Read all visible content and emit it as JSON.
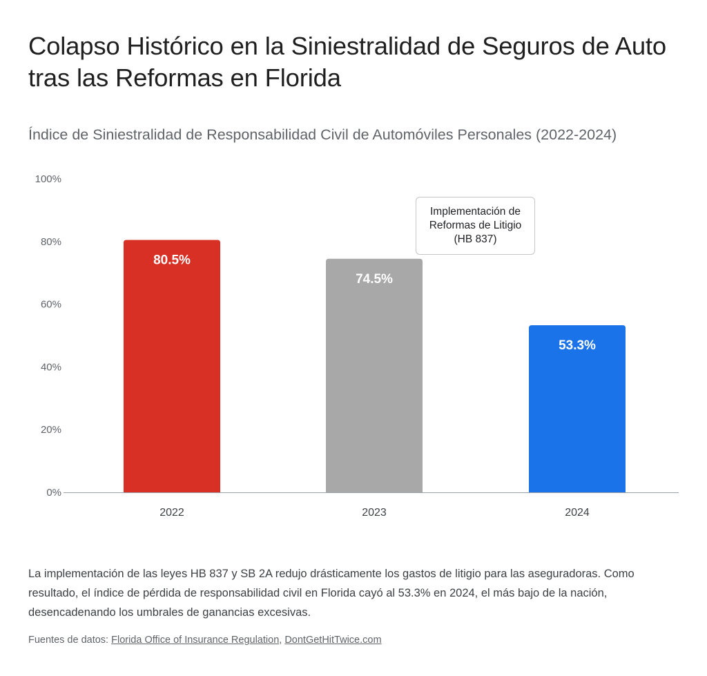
{
  "title": "Colapso Histórico en la Siniestralidad de Seguros de Auto tras las Reformas en Florida",
  "subtitle": "Índice de Siniestralidad de Responsabilidad Civil de Automóviles Personales (2022-2024)",
  "chart_data": {
    "type": "bar",
    "categories": [
      "2022",
      "2023",
      "2024"
    ],
    "values": [
      80.5,
      74.5,
      53.3
    ],
    "value_labels": [
      "80.5%",
      "74.5%",
      "53.3%"
    ],
    "colors": [
      "#d93025",
      "#a8a8a8",
      "#1a73e8"
    ],
    "ylim": [
      0,
      100
    ],
    "yticks": [
      0,
      20,
      40,
      60,
      80,
      100
    ],
    "ytick_labels": [
      "0%",
      "20%",
      "40%",
      "60%",
      "80%",
      "100%"
    ],
    "grid": false,
    "annotation": {
      "category": "2023",
      "text_lines": [
        "Implementación de",
        "Reformas de Litigio",
        "(HB 837)"
      ]
    }
  },
  "description": "La implementación de las leyes HB 837 y SB 2A redujo drásticamente los gastos de litigio para las aseguradoras. Como resultado, el índice de pérdida de responsabilidad civil en Florida cayó al 53.3% en 2024, el más bajo de la nación, desencadenando los umbrales de ganancias excesivas.",
  "sources": {
    "prefix": "Fuentes de datos:",
    "separator": ",",
    "links": [
      "Florida Office of Insurance Regulation",
      "DontGetHitTwice.com"
    ]
  }
}
